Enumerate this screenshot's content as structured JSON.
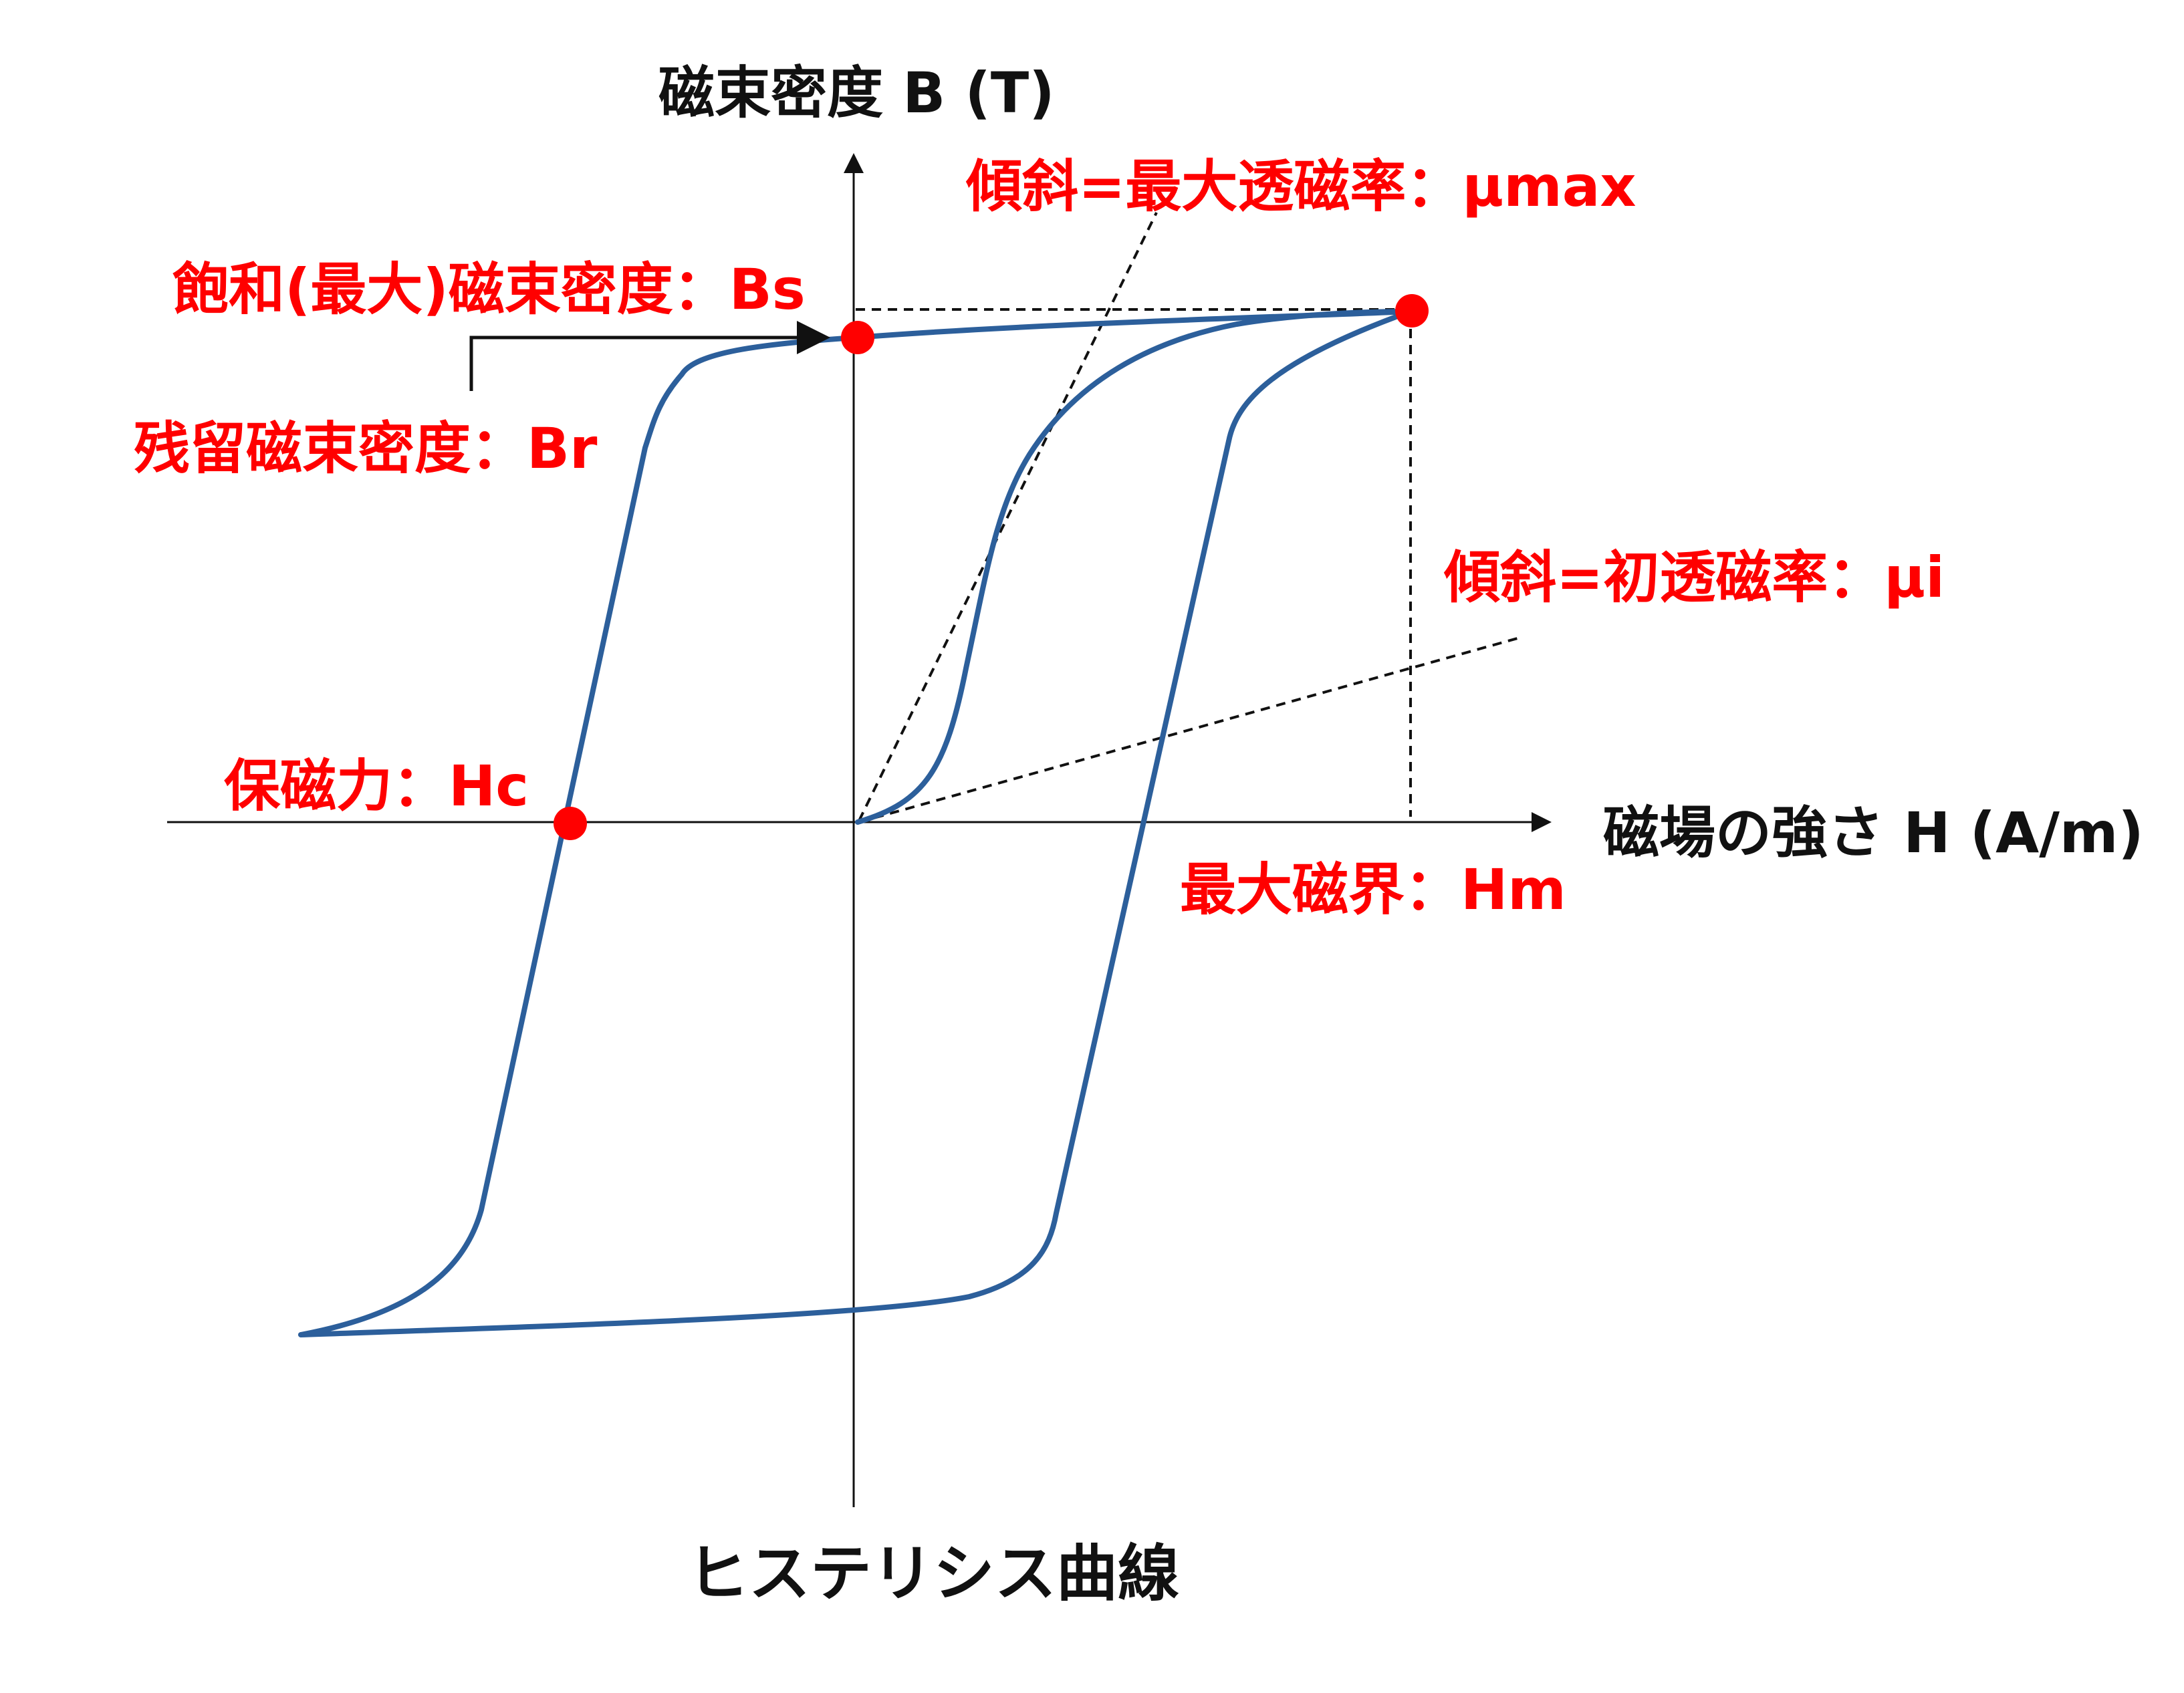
{
  "diagram": {
    "caption": "ヒステリシス曲線",
    "axes": {
      "y_label": "磁束密度 B (T)",
      "x_label": "磁場の強さ H (A/m)"
    },
    "annotations": {
      "mu_max": "傾斜=最大透磁率：μmax",
      "saturation": "飽和(最大)磁束密度：Bs",
      "remanence": "残留磁束密度：Br",
      "mu_initial": "傾斜=初透磁率：μi",
      "coercivity": "保磁力：Hc",
      "max_field": "最大磁界：Hm"
    },
    "colors": {
      "curve": "#2c5f9b",
      "marker": "#ff0000",
      "annotation_text": "#ff0000",
      "axis": "#111111"
    }
  }
}
